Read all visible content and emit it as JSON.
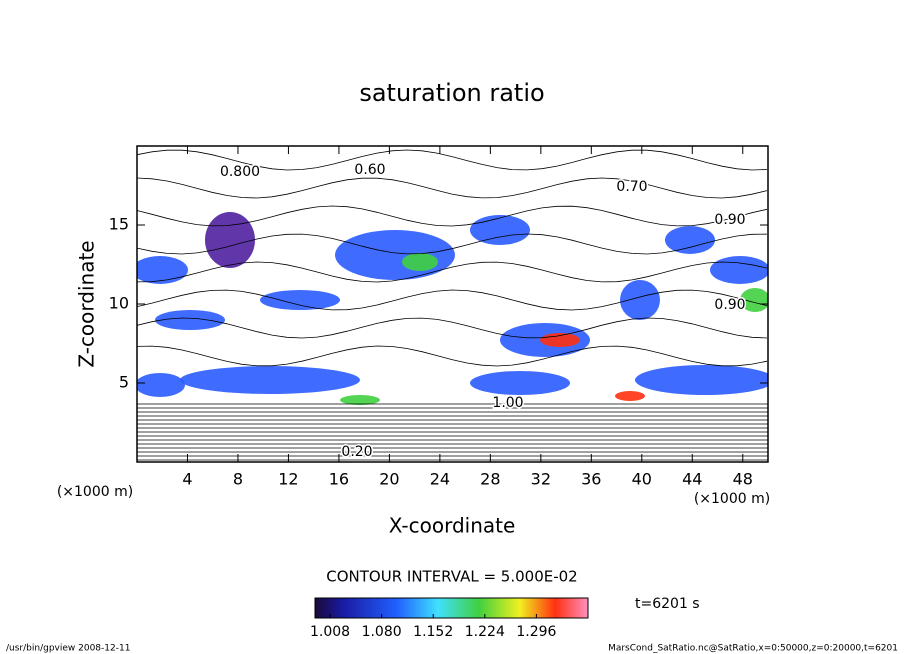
{
  "chart_data": {
    "type": "contour",
    "title": "saturation ratio",
    "xlabel": "X-coordinate",
    "ylabel": "Z-coordinate",
    "x_unit": "(×1000 m)",
    "y_unit": "(×1000 m)",
    "xlim": [
      0,
      50
    ],
    "xticks": [
      4,
      8,
      12,
      16,
      20,
      24,
      28,
      32,
      36,
      40,
      44,
      48
    ],
    "ylim": [
      0,
      20
    ],
    "yticks": [
      5,
      10,
      15
    ],
    "contour_note": "CONTOUR INTERVAL = 5.000E-02",
    "contour_labels": [
      "0.60",
      "0.70",
      "0.90",
      "0.90",
      "0.800",
      "1.00",
      "0.20"
    ],
    "time_label": "t=6201 s",
    "clim": [
      0.987,
      1.368
    ],
    "colorbar_ticks": [
      1.008,
      {
        "value": 1.08,
        "label": "1.080"
      },
      1.152,
      1.224,
      1.296
    ],
    "footer_left": "/usr/bin/gpview   2008-12-11",
    "footer_right": "MarsCond_SatRatio.nc@SatRatio,x=0:50000,z=0:20000,t=6201"
  }
}
